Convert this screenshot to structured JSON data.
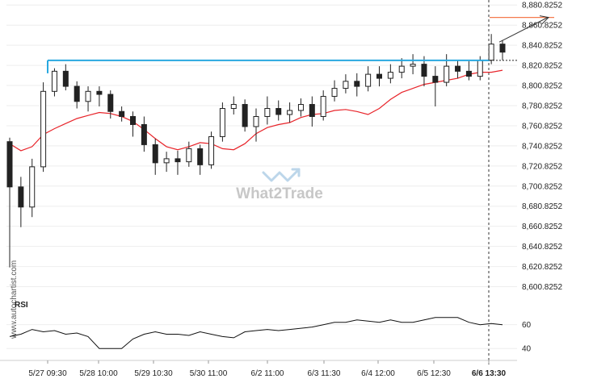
{
  "chart_data": {
    "type": "candlestick",
    "symbol": "",
    "watermark": "What2Trade",
    "side_watermark": "www.autochartist.com",
    "y_axis": {
      "ylim": [
        8590.8252,
        8881.8252
      ],
      "ticks": [
        "8,600.8252",
        "8,620.8252",
        "8,640.8252",
        "8,660.8252",
        "8,680.8252",
        "8,700.8252",
        "8,720.8252",
        "8,740.8252",
        "8,760.8252",
        "8,780.8252",
        "8,800.8252",
        "8,820.8252",
        "8,840.8252",
        "8,860.8252",
        "8,880.8252"
      ]
    },
    "x_axis": {
      "ticks": [
        "5/27 09:30",
        "5/28 10:00",
        "5/29 10:30",
        "5/30 11:00",
        "6/2 11:00",
        "6/3 11:30",
        "6/4 12:00",
        "6/5 12:30",
        "6/6 13:30"
      ]
    },
    "resistance_level": 8825.8,
    "breakout_marker": "6/6 13:30",
    "target_level": 8868.5,
    "moving_average": [
      8743,
      8736,
      8740,
      8752,
      8758,
      8763,
      8768,
      8771,
      8774,
      8773,
      8770,
      8765,
      8757,
      8748,
      8740,
      8737,
      8740,
      8744,
      8743,
      8738,
      8737,
      8743,
      8753,
      8759,
      8762,
      8764,
      8769,
      8772,
      8773,
      8776,
      8777,
      8775,
      8772,
      8778,
      8787,
      8794,
      8798,
      8802,
      8804,
      8806,
      8808,
      8812,
      8814,
      8814,
      8816
    ],
    "rsi": {
      "label": "RSI",
      "ticks": [
        "60",
        "40"
      ],
      "ylim": [
        32,
        74
      ],
      "values": [
        50,
        52,
        56,
        54,
        55,
        52,
        53,
        50,
        40,
        40,
        40,
        48,
        52,
        54,
        52,
        52,
        51,
        54,
        52,
        50,
        49,
        54,
        55,
        56,
        55,
        56,
        57,
        58,
        60,
        62,
        62,
        64,
        63,
        62,
        64,
        62,
        62,
        64,
        66,
        66,
        66,
        62,
        60,
        61,
        60
      ]
    },
    "candles": [
      [
        8745,
        8700,
        8749,
        8620
      ],
      [
        8700,
        8680,
        8710,
        8660
      ],
      [
        8680,
        8720,
        8728,
        8670
      ],
      [
        8720,
        8795,
        8804,
        8715
      ],
      [
        8795,
        8815,
        8818,
        8790
      ],
      [
        8815,
        8800,
        8822,
        8796
      ],
      [
        8800,
        8785,
        8805,
        8778
      ],
      [
        8785,
        8795,
        8800,
        8775
      ],
      [
        8795,
        8792,
        8800,
        8780
      ],
      [
        8792,
        8775,
        8796,
        8768
      ],
      [
        8775,
        8770,
        8780,
        8765
      ],
      [
        8770,
        8762,
        8775,
        8750
      ],
      [
        8762,
        8742,
        8770,
        8735
      ],
      [
        8742,
        8724,
        8748,
        8712
      ],
      [
        8724,
        8728,
        8735,
        8715
      ],
      [
        8728,
        8725,
        8736,
        8712
      ],
      [
        8725,
        8738,
        8745,
        8720
      ],
      [
        8738,
        8722,
        8742,
        8712
      ],
      [
        8722,
        8750,
        8755,
        8718
      ],
      [
        8750,
        8778,
        8784,
        8745
      ],
      [
        8778,
        8782,
        8790,
        8772
      ],
      [
        8782,
        8760,
        8787,
        8755
      ],
      [
        8760,
        8770,
        8778,
        8745
      ],
      [
        8770,
        8778,
        8790,
        8762
      ],
      [
        8778,
        8772,
        8786,
        8766
      ],
      [
        8772,
        8776,
        8784,
        8764
      ],
      [
        8776,
        8782,
        8788,
        8770
      ],
      [
        8782,
        8770,
        8790,
        8760
      ],
      [
        8770,
        8790,
        8796,
        8766
      ],
      [
        8790,
        8798,
        8806,
        8785
      ],
      [
        8798,
        8805,
        8812,
        8793
      ],
      [
        8805,
        8800,
        8813,
        8790
      ],
      [
        8800,
        8812,
        8820,
        8795
      ],
      [
        8812,
        8808,
        8820,
        8800
      ],
      [
        8808,
        8814,
        8822,
        8803
      ],
      [
        8814,
        8820,
        8828,
        8808
      ],
      [
        8820,
        8822,
        8832,
        8812
      ],
      [
        8822,
        8810,
        8830,
        8800
      ],
      [
        8810,
        8804,
        8820,
        8780
      ],
      [
        8804,
        8820,
        8832,
        8800
      ],
      [
        8820,
        8815,
        8826,
        8808
      ],
      [
        8815,
        8810,
        8825,
        8806
      ],
      [
        8810,
        8826,
        8830,
        8806
      ],
      [
        8826,
        8842,
        8852,
        8822
      ],
      [
        8842,
        8834,
        8846,
        8826
      ]
    ]
  }
}
